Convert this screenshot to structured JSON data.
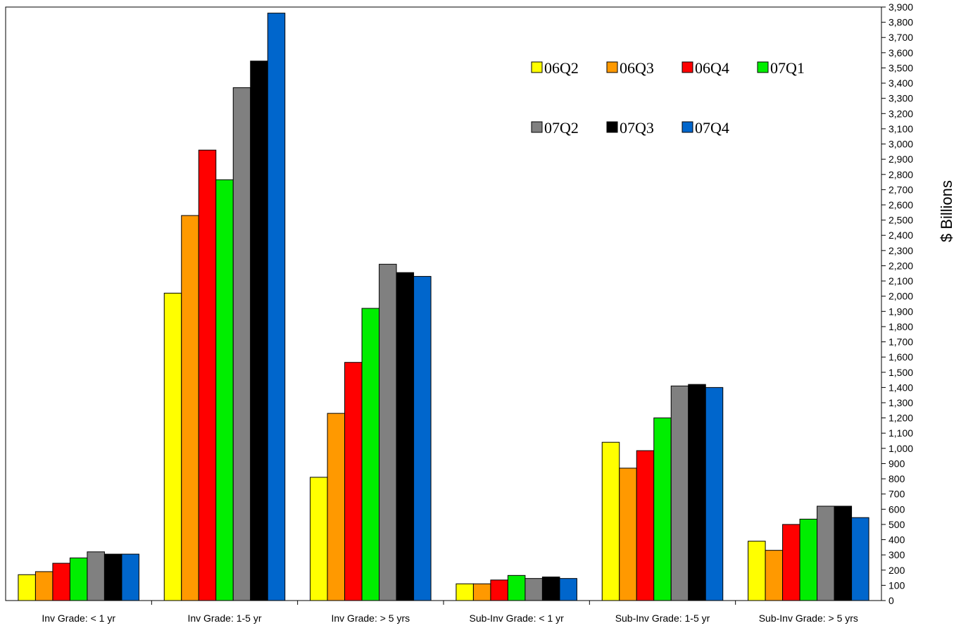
{
  "chart_data": {
    "type": "bar",
    "title": "",
    "xlabel": "",
    "ylabel": "$ Billions",
    "ylim": [
      0,
      3900
    ],
    "ytick_step": 100,
    "grid": false,
    "legend_position": "top-right",
    "categories": [
      "Inv Grade: < 1 yr",
      "Inv Grade: 1-5 yr",
      "Inv Grade: > 5 yrs",
      "Sub-Inv Grade: < 1 yr",
      "Sub-Inv Grade: 1-5 yr",
      "Sub-Inv Grade: > 5 yrs"
    ],
    "series": [
      {
        "name": "06Q2",
        "color": "#ffff00",
        "values": [
          170,
          2020,
          810,
          110,
          1040,
          390
        ]
      },
      {
        "name": "06Q3",
        "color": "#ff9900",
        "values": [
          190,
          2530,
          1230,
          110,
          870,
          330
        ]
      },
      {
        "name": "06Q4",
        "color": "#ff0000",
        "values": [
          245,
          2960,
          1565,
          135,
          985,
          500
        ]
      },
      {
        "name": "07Q1",
        "color": "#00ee00",
        "values": [
          280,
          2765,
          1920,
          165,
          1200,
          535
        ]
      },
      {
        "name": "07Q2",
        "color": "#808080",
        "values": [
          320,
          3370,
          2210,
          145,
          1410,
          620
        ]
      },
      {
        "name": "07Q3",
        "color": "#000000",
        "values": [
          305,
          3545,
          2155,
          155,
          1420,
          620
        ]
      },
      {
        "name": "07Q4",
        "color": "#0066cc",
        "values": [
          305,
          3860,
          2130,
          145,
          1400,
          545
        ]
      }
    ]
  }
}
